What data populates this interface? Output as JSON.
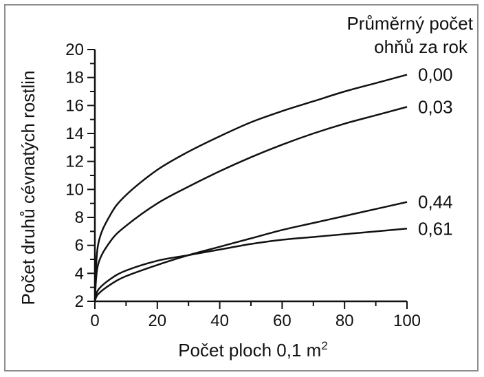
{
  "chart_data": {
    "type": "line",
    "legend": {
      "title_line1": "Průměrný počet",
      "title_line2": "ohňů za rok"
    },
    "xlabel": "Počet ploch 0,1 m",
    "xlabel_superscript": "2",
    "ylabel": "Počet druhů cévnatých rostlin",
    "xlim": [
      0,
      100
    ],
    "ylim": [
      2,
      20
    ],
    "x_ticks": [
      "0",
      "20",
      "40",
      "60",
      "80",
      "100"
    ],
    "y_ticks": [
      "2",
      "4",
      "6",
      "8",
      "10",
      "12",
      "14",
      "16",
      "18",
      "20"
    ],
    "grid": false,
    "series": [
      {
        "name": "0,00",
        "x": [
          0,
          1,
          5,
          10,
          20,
          30,
          40,
          50,
          60,
          70,
          80,
          90,
          100
        ],
        "y": [
          2.0,
          6.0,
          8.2,
          9.6,
          11.4,
          12.7,
          13.8,
          14.8,
          15.6,
          16.3,
          17.0,
          17.6,
          18.2
        ]
      },
      {
        "name": "0,03",
        "x": [
          0,
          1,
          5,
          10,
          20,
          30,
          40,
          50,
          60,
          70,
          80,
          90,
          100
        ],
        "y": [
          2.0,
          4.6,
          6.3,
          7.4,
          9.0,
          10.2,
          11.3,
          12.3,
          13.2,
          14.0,
          14.7,
          15.3,
          15.9
        ]
      },
      {
        "name": "0,44",
        "x": [
          0,
          1,
          5,
          10,
          20,
          30,
          40,
          50,
          60,
          70,
          80,
          90,
          100
        ],
        "y": [
          2.0,
          2.5,
          3.2,
          3.8,
          4.6,
          5.3,
          5.9,
          6.5,
          7.1,
          7.6,
          8.1,
          8.6,
          9.1
        ]
      },
      {
        "name": "0,61",
        "x": [
          0,
          1,
          5,
          10,
          20,
          30,
          40,
          50,
          60,
          70,
          80,
          90,
          100
        ],
        "y": [
          2.0,
          2.8,
          3.6,
          4.2,
          4.9,
          5.3,
          5.7,
          6.1,
          6.4,
          6.6,
          6.8,
          7.0,
          7.2
        ]
      }
    ]
  }
}
